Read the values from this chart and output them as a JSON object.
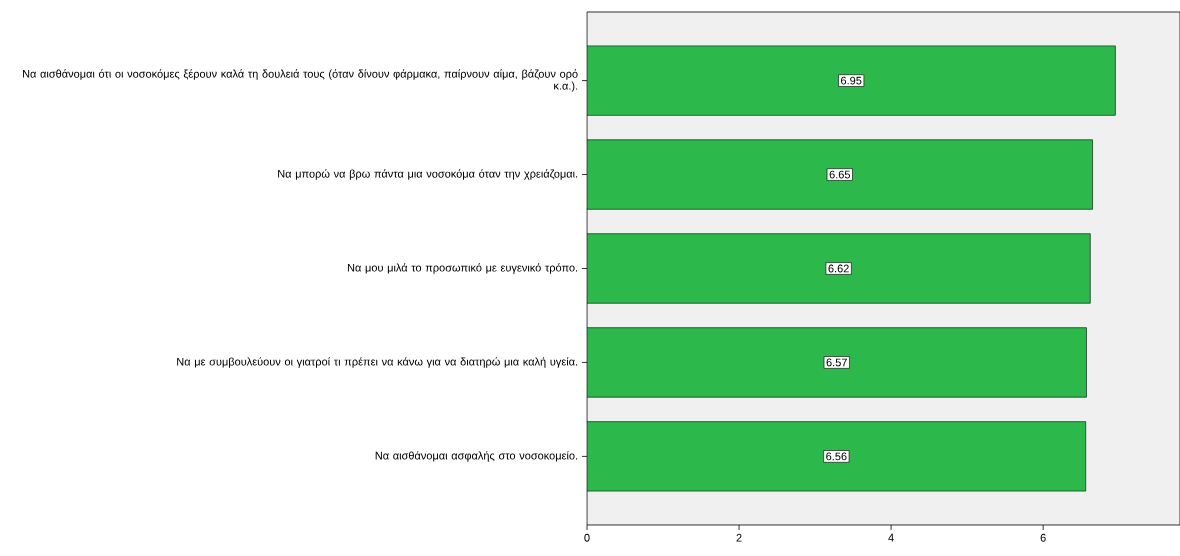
{
  "chart_data": {
    "type": "bar",
    "orientation": "horizontal",
    "categories": [
      "Να αισθάνομαι ότι οι νοσοκόμες ξέρουν καλά τη δουλειά τους (όταν δίνουν φάρμακα, παίρνουν αίμα, βάζουν ορό κ.α.).",
      "Να μπορώ να βρω πάντα μια νοσοκόμα όταν την χρειάζομαι.",
      "Να μου μιλά το προσωπικό με ευγενικό τρόπο.",
      "Να με συμβουλεύουν οι γιατροί τι πρέπει να κάνω για να διατηρώ μια καλή υγεία.",
      "Να αισθάνομαι ασφαλής στο νοσοκομείο."
    ],
    "values": [
      6.95,
      6.65,
      6.62,
      6.57,
      6.56
    ],
    "color": "#2db84b",
    "xlim": [
      0,
      7.8
    ],
    "xticks": [
      0,
      2,
      4,
      6
    ],
    "data_labels": true
  }
}
